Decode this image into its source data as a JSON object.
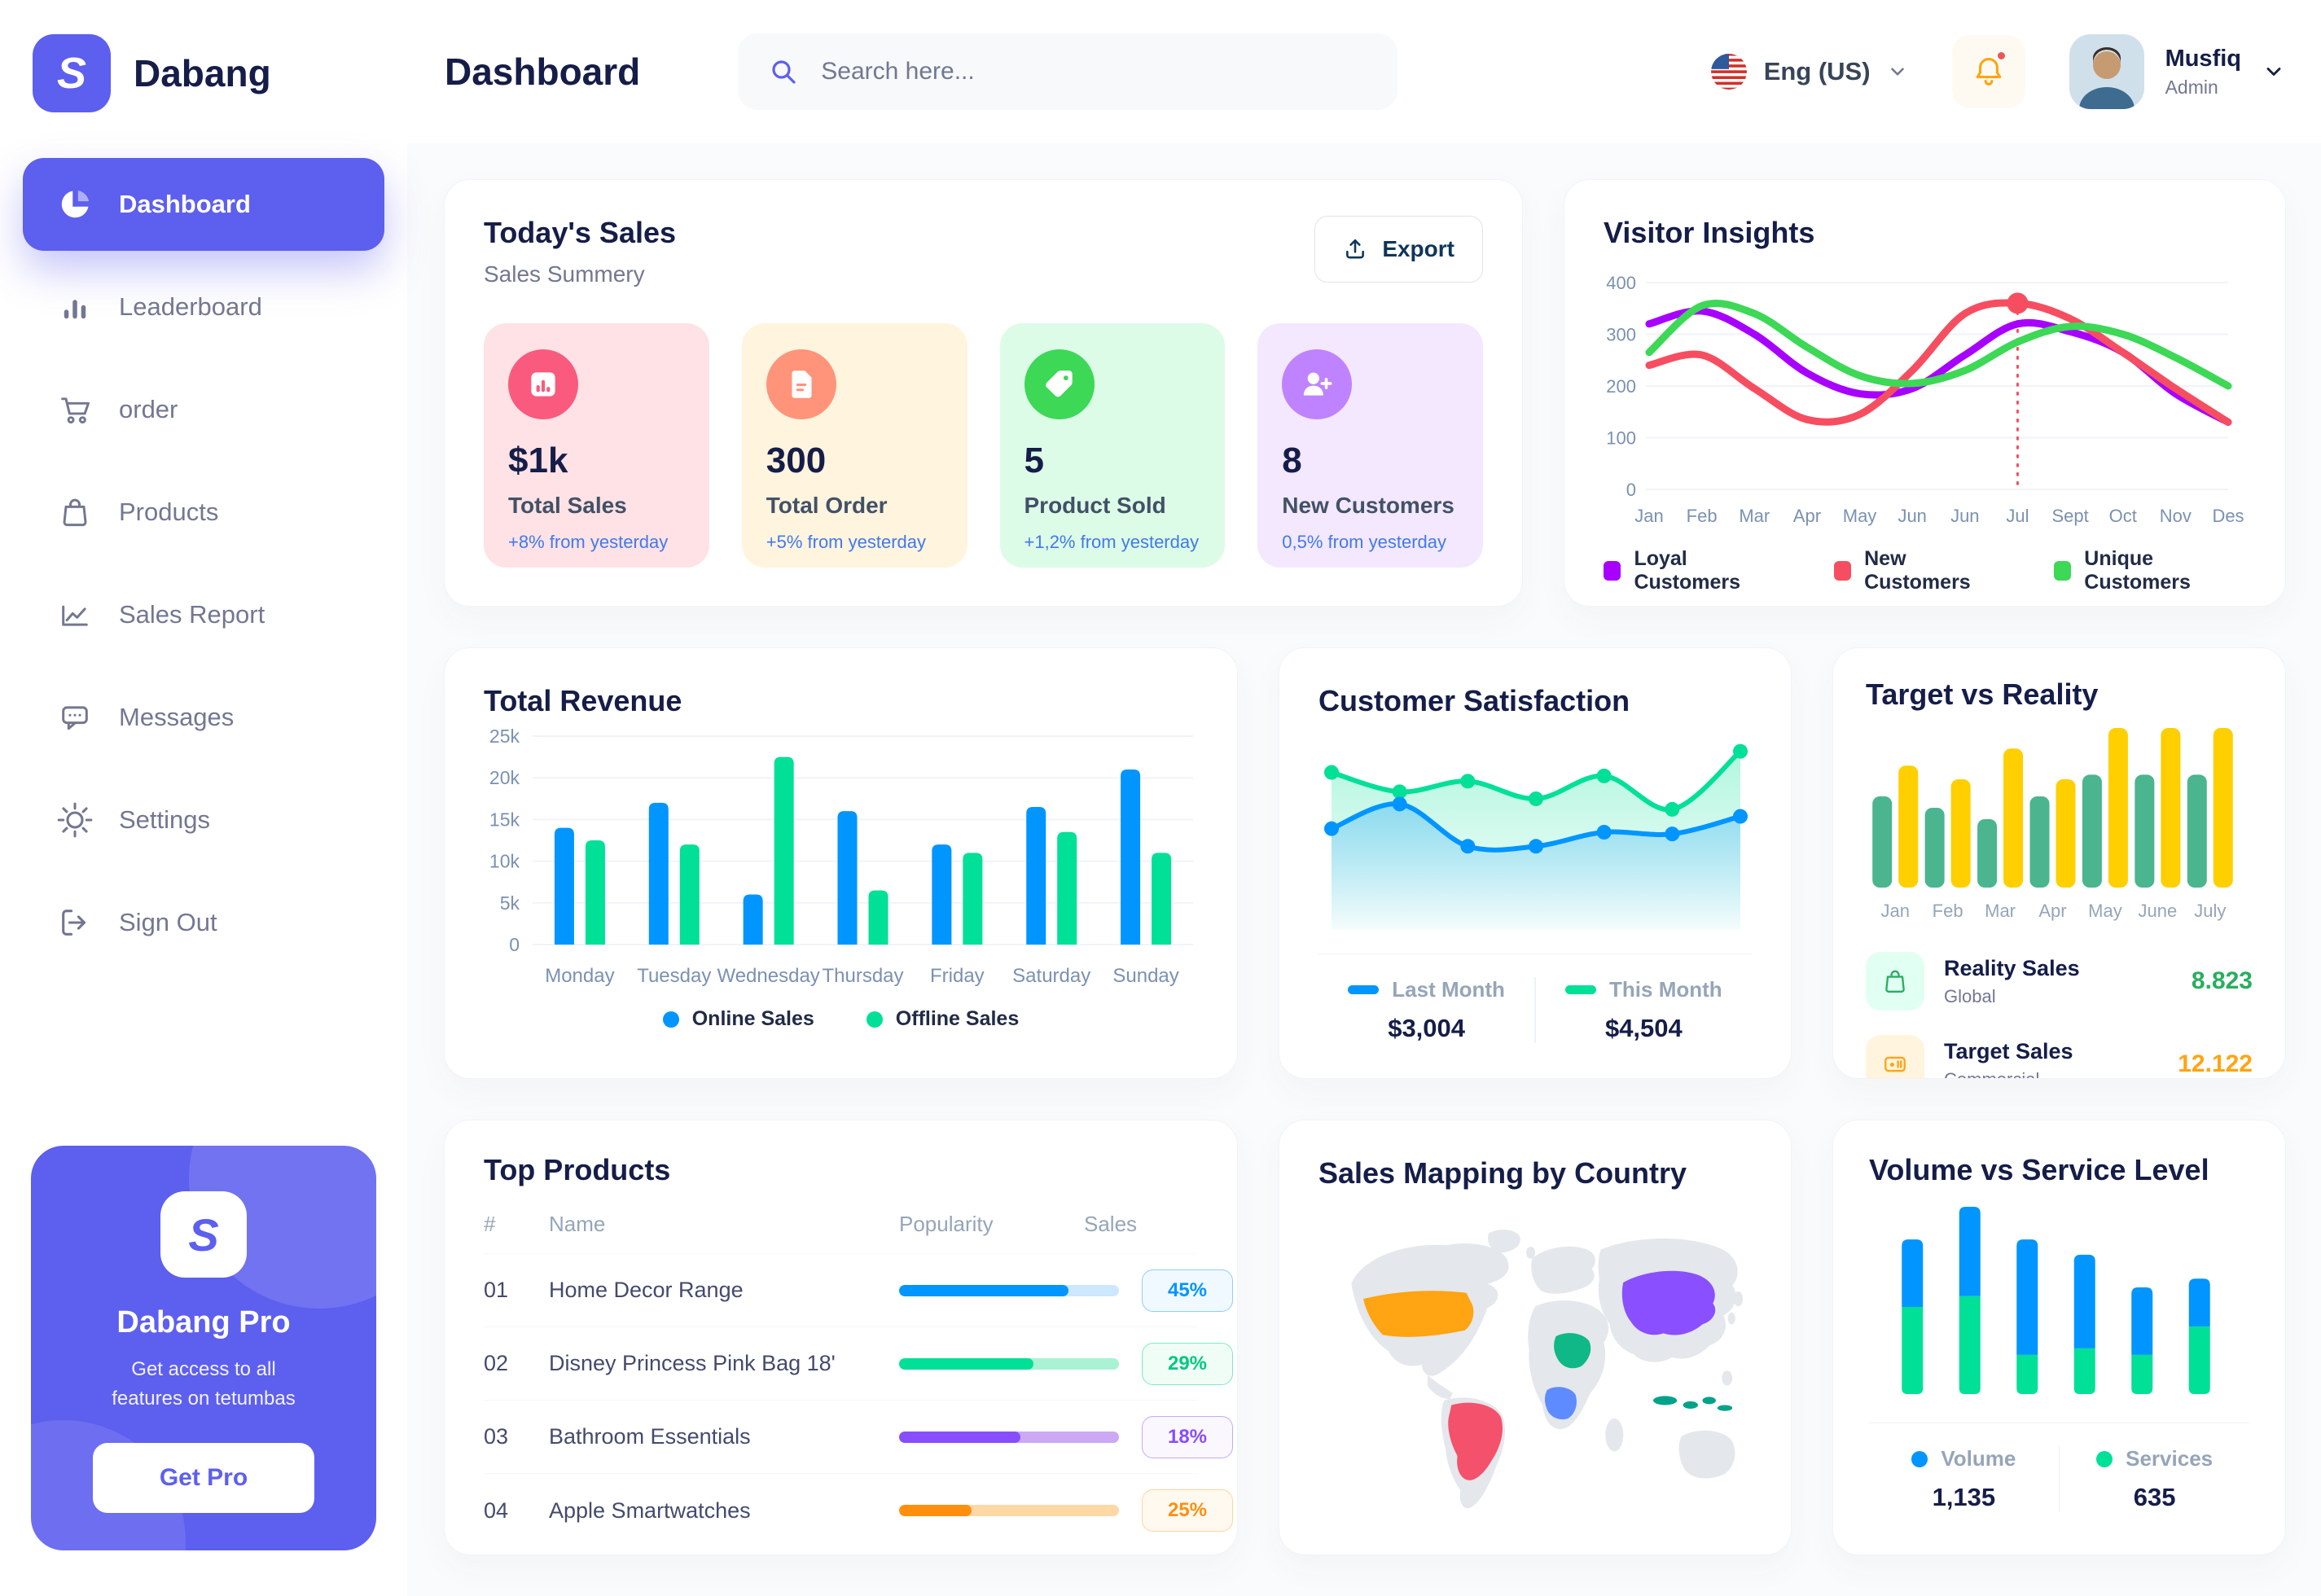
{
  "brand": {
    "name": "Dabang",
    "logo_glyph": "S"
  },
  "sidebar": {
    "items": [
      {
        "label": "Dashboard",
        "icon": "pie-chart-icon",
        "active": true
      },
      {
        "label": "Leaderboard",
        "icon": "bar-chart-icon"
      },
      {
        "label": "order",
        "icon": "cart-icon"
      },
      {
        "label": "Products",
        "icon": "bag-icon"
      },
      {
        "label": "Sales Report",
        "icon": "line-chart-icon"
      },
      {
        "label": "Messages",
        "icon": "chat-icon"
      },
      {
        "label": "Settings",
        "icon": "gear-icon"
      },
      {
        "label": "Sign Out",
        "icon": "sign-out-icon"
      }
    ],
    "pro": {
      "title": "Dabang Pro",
      "line1": "Get access to all",
      "line2": "features on tetumbas",
      "button": "Get Pro"
    }
  },
  "header": {
    "title": "Dashboard",
    "search_placeholder": "Search here...",
    "language": "Eng (US)",
    "user_name": "Musfiq",
    "user_role": "Admin"
  },
  "today_sales": {
    "title": "Today's Sales",
    "subtitle": "Sales Summery",
    "export_label": "Export",
    "stats": [
      {
        "value": "$1k",
        "label": "Total Sales",
        "delta": "+8% from yesterday",
        "bg": "#FFE2E5",
        "icon_bg": "#FA5A7D",
        "icon": "sales-chart-icon"
      },
      {
        "value": "300",
        "label": "Total Order",
        "delta": "+5% from yesterday",
        "bg": "#FFF4DE",
        "icon_bg": "#FF947A",
        "icon": "order-doc-icon"
      },
      {
        "value": "5",
        "label": "Product Sold",
        "delta": "+1,2% from yesterday",
        "bg": "#DCFCE7",
        "icon_bg": "#3CD856",
        "icon": "tag-icon"
      },
      {
        "value": "8",
        "label": "New Customers",
        "delta": "0,5% from yesterday",
        "bg": "#F3E8FF",
        "icon_bg": "#BF83FF",
        "icon": "user-plus-icon"
      }
    ]
  },
  "top_products": {
    "title": "Top Products",
    "headers": [
      "#",
      "Name",
      "Popularity",
      "Sales"
    ],
    "rows": [
      {
        "num": "01",
        "name": "Home Decor Range",
        "popularity": 77,
        "sales": "45%",
        "fill": "#0095FF",
        "track": "#CDE7FF",
        "badge_text": "#0095FF",
        "badge_bg": "#F0F9FF",
        "badge_border": "#8FCCFF"
      },
      {
        "num": "02",
        "name": "Disney Princess Pink Bag 18'",
        "popularity": 61,
        "sales": "29%",
        "fill": "#00E096",
        "track": "#A9F2D3",
        "badge_text": "#00C880",
        "badge_bg": "#F0FDF6",
        "badge_border": "#7DEBBE"
      },
      {
        "num": "03",
        "name": "Bathroom Essentials",
        "popularity": 55,
        "sales": "18%",
        "fill": "#884DFF",
        "track": "#CBA9F5",
        "badge_text": "#884DFF",
        "badge_bg": "#FBF7FF",
        "badge_border": "#C5A8FF"
      },
      {
        "num": "04",
        "name": "Apple Smartwatches",
        "popularity": 33,
        "sales": "25%",
        "fill": "#FF8F0D",
        "track": "#FFD8A6",
        "badge_text": "#FF8F0D",
        "badge_bg": "#FFF9F0",
        "badge_border": "#FFD49A"
      }
    ]
  },
  "chart_data": [
    {
      "id": "visitor_insights",
      "type": "line",
      "title": "Visitor Insights",
      "x": [
        "Jan",
        "Feb",
        "Mar",
        "Apr",
        "May",
        "Jun",
        "Jun",
        "Jul",
        "Sept",
        "Oct",
        "Nov",
        "Des"
      ],
      "ylim": [
        0,
        400
      ],
      "yticks": [
        0,
        100,
        200,
        300,
        400
      ],
      "grid": true,
      "legend_position": "bottom",
      "series": [
        {
          "name": "Loyal Customers",
          "color": "#A700FF",
          "values": [
            320,
            345,
            300,
            225,
            185,
            195,
            260,
            320,
            305,
            265,
            185,
            130
          ]
        },
        {
          "name": "New Customers",
          "color": "#F64E60",
          "values": [
            240,
            260,
            195,
            135,
            145,
            230,
            340,
            360,
            330,
            265,
            195,
            130
          ]
        },
        {
          "name": "Unique Customers",
          "color": "#3CD856",
          "values": [
            265,
            355,
            340,
            275,
            220,
            205,
            230,
            285,
            315,
            300,
            255,
            200
          ]
        }
      ],
      "highlight": {
        "series_index": 1,
        "index": 7
      }
    },
    {
      "id": "total_revenue",
      "type": "bar",
      "title": "Total Revenue",
      "categories": [
        "Monday",
        "Tuesday",
        "Wednesday",
        "Thursday",
        "Friday",
        "Saturday",
        "Sunday"
      ],
      "ylim": [
        0,
        25
      ],
      "yticks": [
        "0",
        "5k",
        "10k",
        "15k",
        "20k",
        "25k"
      ],
      "grid": true,
      "legend_position": "bottom",
      "series": [
        {
          "name": "Online Sales",
          "color": "#0095FF",
          "values": [
            14,
            17,
            6,
            16,
            12,
            16.5,
            21
          ]
        },
        {
          "name": "Offline Sales",
          "color": "#00E096",
          "values": [
            12.5,
            12,
            22.5,
            6.5,
            11,
            13.5,
            11
          ]
        }
      ]
    },
    {
      "id": "customer_satisfaction",
      "type": "area",
      "title": "Customer Satisfaction",
      "ylim": [
        0,
        100
      ],
      "series": [
        {
          "name": "Last Month",
          "color": "#0095FF",
          "total": "$3,004",
          "values": [
            52,
            66,
            42,
            42,
            50,
            49,
            59
          ]
        },
        {
          "name": "This Month",
          "color": "#00E096",
          "total": "$4,504",
          "values": [
            84,
            73,
            79,
            69,
            82,
            63,
            96
          ]
        }
      ]
    },
    {
      "id": "target_vs_reality",
      "type": "bar",
      "title": "Target vs Reality",
      "categories": [
        "Jan",
        "Feb",
        "Mar",
        "Apr",
        "May",
        "June",
        "July"
      ],
      "series": [
        {
          "name": "Reality Sales",
          "subtitle": "Global",
          "color": "#4AB58E",
          "chip_bg": "#E2FFF3",
          "value": "8.823",
          "value_color": "#27AE60",
          "values": [
            8,
            7,
            6,
            8,
            9.9,
            9.9,
            9.9
          ]
        },
        {
          "name": "Target Sales",
          "subtitle": "Commercial",
          "color": "#FFCF00",
          "chip_bg": "#FFF4DE",
          "value": "12.122",
          "value_color": "#FFA412",
          "values": [
            10.7,
            9.5,
            12.2,
            9.5,
            14,
            14,
            14
          ]
        }
      ]
    },
    {
      "id": "sales_map",
      "type": "map",
      "title": "Sales Mapping by Country",
      "countries": [
        {
          "id": "usa",
          "name": "United States",
          "color": "#FFA412"
        },
        {
          "id": "brazil",
          "name": "Brazil",
          "color": "#F4516C"
        },
        {
          "id": "china",
          "name": "China",
          "color": "#8A4FFF"
        },
        {
          "id": "saudi",
          "name": "Saudi Arabia",
          "color": "#0FB886"
        },
        {
          "id": "congo",
          "name": "DR Congo",
          "color": "#5E8BFF"
        },
        {
          "id": "indonesia",
          "name": "Indonesia",
          "color": "#00A389"
        }
      ]
    },
    {
      "id": "volume_service",
      "type": "stacked-bar",
      "title": "Volume vs Service Level",
      "series": [
        {
          "name": "Volume",
          "color": "#0095FF",
          "total": "1,135",
          "values": [
            31,
            41,
            53,
            43,
            31,
            22
          ]
        },
        {
          "name": "Services",
          "color": "#00E096",
          "total": "635",
          "values": [
            40,
            45,
            18,
            21,
            18,
            31
          ]
        }
      ]
    }
  ]
}
